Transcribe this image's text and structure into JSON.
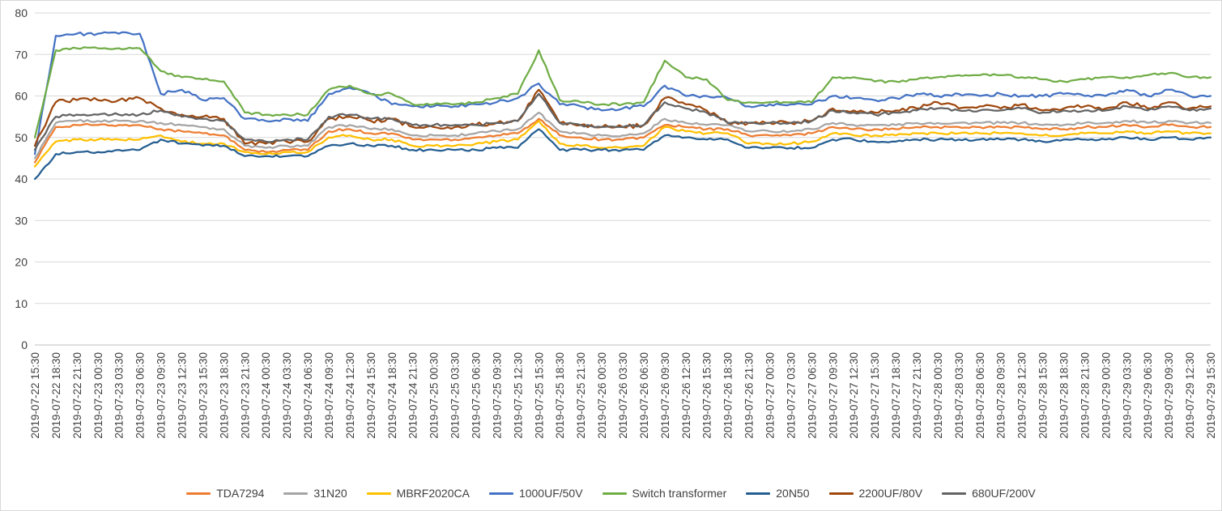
{
  "chart_data": {
    "type": "line",
    "title": "",
    "xlabel": "",
    "ylabel": "",
    "ylim": [
      0,
      80
    ],
    "ytick_step": 10,
    "grid": "horizontal",
    "legend_position": "bottom",
    "gridline_color": "#d9d9d9",
    "axis_line_color": "#bfbfbf",
    "axis_label_color": "#404040",
    "x": [
      "2019-07-22 15:30",
      "2019-07-22 18:30",
      "2019-07-22 21:30",
      "2019-07-23 00:30",
      "2019-07-23 03:30",
      "2019-07-23 06:30",
      "2019-07-23 09:30",
      "2019-07-23 12:30",
      "2019-07-23 15:30",
      "2019-07-23 18:30",
      "2019-07-23 21:30",
      "2019-07-24 00:30",
      "2019-07-24 03:30",
      "2019-07-24 06:30",
      "2019-07-24 09:30",
      "2019-07-24 12:30",
      "2019-07-24 15:30",
      "2019-07-24 18:30",
      "2019-07-24 21:30",
      "2019-07-25 00:30",
      "2019-07-25 03:30",
      "2019-07-25 06:30",
      "2019-07-25 09:30",
      "2019-07-25 12:30",
      "2019-07-25 15:30",
      "2019-07-25 18:30",
      "2019-07-25 21:30",
      "2019-07-26 00:30",
      "2019-07-26 03:30",
      "2019-07-26 06:30",
      "2019-07-26 09:30",
      "2019-07-26 12:30",
      "2019-07-26 15:30",
      "2019-07-26 18:30",
      "2019-07-26 21:30",
      "2019-07-27 00:30",
      "2019-07-27 03:30",
      "2019-07-27 06:30",
      "2019-07-27 09:30",
      "2019-07-27 12:30",
      "2019-07-27 15:30",
      "2019-07-27 18:30",
      "2019-07-27 21:30",
      "2019-07-28 00:30",
      "2019-07-28 03:30",
      "2019-07-28 06:30",
      "2019-07-28 09:30",
      "2019-07-28 12:30",
      "2019-07-28 15:30",
      "2019-07-28 18:30",
      "2019-07-28 21:30",
      "2019-07-29 00:30",
      "2019-07-29 03:30",
      "2019-07-29 06:30",
      "2019-07-29 09:30",
      "2019-07-29 12:30",
      "2019-07-29 15:30"
    ],
    "series": [
      {
        "name": "TDA7294",
        "color": "#ED7D31",
        "noise": 0.3,
        "values": [
          44,
          52.5,
          53,
          53,
          53,
          53,
          52,
          51.5,
          51,
          50.5,
          47,
          46.5,
          47,
          47,
          51.5,
          52,
          51,
          51,
          49.5,
          49.5,
          49.5,
          50,
          50.5,
          51,
          54.5,
          50.5,
          50,
          49.5,
          49.5,
          50,
          53,
          52.5,
          52,
          52,
          50.5,
          50.5,
          50.5,
          51,
          52.5,
          52,
          52,
          52,
          52.5,
          52.5,
          52.5,
          52.5,
          52.5,
          52.5,
          52,
          52,
          52.5,
          52.5,
          53,
          52.5,
          53,
          52.5,
          52.5
        ]
      },
      {
        "name": "31N20",
        "color": "#A5A5A5",
        "noise": 0.3,
        "values": [
          45,
          53.5,
          54,
          54,
          54,
          54,
          53.5,
          53,
          52.5,
          52,
          48,
          47.5,
          48,
          48,
          52.5,
          53,
          52,
          52,
          50.5,
          50.5,
          50.5,
          51,
          51.5,
          52,
          56,
          51.5,
          51,
          50.5,
          50.5,
          51,
          54.5,
          53.5,
          53,
          53,
          51.5,
          51.5,
          51.5,
          52,
          53.5,
          53,
          53,
          53,
          53.5,
          53.5,
          53.5,
          53.5,
          53.5,
          53.5,
          53,
          53,
          53.5,
          53.5,
          54,
          53.5,
          54,
          53.5,
          53.5
        ]
      },
      {
        "name": "MBRF2020CA",
        "color": "#FFC000",
        "noise": 0.3,
        "values": [
          43,
          49,
          49.5,
          49.5,
          49.5,
          49.5,
          50.5,
          49,
          48.5,
          48.5,
          46.5,
          46,
          46.5,
          46.5,
          50,
          50.5,
          49.5,
          49.5,
          48,
          48,
          48,
          48.5,
          49,
          49.5,
          54,
          48.5,
          48,
          47.5,
          47.5,
          48,
          52.5,
          51.5,
          51,
          51,
          48.5,
          48.5,
          48.5,
          49,
          51,
          50.5,
          50.5,
          50.5,
          51,
          51,
          51,
          51,
          51,
          51,
          50.5,
          50.5,
          51,
          51,
          51.5,
          51,
          51.5,
          51,
          51
        ]
      },
      {
        "name": "1000UF/50V",
        "color": "#4472C4",
        "noise": 0.4,
        "values": [
          46,
          74.5,
          75,
          75,
          75,
          75,
          60.5,
          61.5,
          59,
          59.5,
          54.5,
          54,
          54.5,
          54,
          60.5,
          62,
          60.5,
          58,
          57.5,
          57.5,
          57.5,
          58,
          58.5,
          59.5,
          63,
          58,
          57.5,
          56.5,
          57,
          57.5,
          62.5,
          60,
          60,
          59.5,
          57.5,
          58,
          58,
          58,
          60,
          59.5,
          59,
          59.5,
          60.5,
          60,
          60.5,
          60,
          60.5,
          60,
          60,
          60.5,
          60,
          60,
          61.5,
          60,
          61.5,
          60,
          60
        ]
      },
      {
        "name": "Switch transformer",
        "color": "#70AD47",
        "noise": 0.3,
        "values": [
          50,
          71,
          71.5,
          71.5,
          71.5,
          71.5,
          66,
          64.5,
          64,
          63.5,
          56,
          55.5,
          55.5,
          55.5,
          61.5,
          62.5,
          60.5,
          60.5,
          58,
          58,
          58,
          58.5,
          59.5,
          60.5,
          71,
          59,
          58.5,
          58,
          58,
          58.5,
          68.5,
          64.5,
          64,
          59,
          58.5,
          58.5,
          58.5,
          58.5,
          64.5,
          64.5,
          63.5,
          63.5,
          64,
          64.5,
          65,
          65,
          65,
          64.5,
          64,
          63.5,
          64,
          64.5,
          64.5,
          65,
          65.5,
          64.5,
          64.5
        ]
      },
      {
        "name": "20N50",
        "color": "#255E91",
        "noise": 0.3,
        "values": [
          40,
          46,
          46.5,
          46.5,
          47,
          47,
          49.5,
          48.5,
          48,
          48,
          45.5,
          45.5,
          45.5,
          45.5,
          48,
          48.5,
          48,
          48,
          47,
          47,
          47,
          47,
          47.5,
          47.5,
          52,
          47,
          47,
          47,
          47,
          47,
          50.5,
          50,
          49.5,
          49.5,
          47.5,
          47.5,
          47.5,
          47.5,
          49.5,
          49.5,
          49,
          49,
          49.5,
          49.5,
          49.5,
          49.5,
          49.5,
          49.5,
          49,
          49.5,
          49.5,
          49.5,
          50,
          49.5,
          50,
          49.5,
          50
        ]
      },
      {
        "name": "2200UF/80V",
        "color": "#9E480E",
        "noise": 0.55,
        "values": [
          48,
          58.5,
          59,
          59,
          59,
          59.5,
          57,
          55.5,
          55,
          54.5,
          48.5,
          48.5,
          49,
          49,
          54.5,
          55,
          54,
          54.5,
          52.5,
          52.5,
          52.5,
          53,
          53.5,
          54,
          61.5,
          53.5,
          53,
          52.5,
          52.5,
          53,
          59.5,
          58,
          56.5,
          53.5,
          53.5,
          53.5,
          53.5,
          54,
          57,
          56.5,
          56,
          56.5,
          57,
          58.5,
          57,
          57.5,
          57,
          58,
          56.5,
          57,
          57.5,
          57,
          58.5,
          57,
          58.5,
          57,
          57.5
        ]
      },
      {
        "name": "680UF/200V",
        "color": "#636363",
        "noise": 0.35,
        "values": [
          47,
          55,
          55.5,
          55.5,
          55.5,
          55.5,
          56.5,
          55,
          54.5,
          54,
          49.5,
          49,
          49.5,
          49.5,
          55,
          55.5,
          54.5,
          54.5,
          53,
          53,
          53,
          53,
          53.5,
          54,
          60.5,
          53.5,
          53,
          52.5,
          52.5,
          53,
          58.5,
          57,
          56,
          53.5,
          53.5,
          53.5,
          53.5,
          54,
          56.5,
          56,
          55.5,
          56,
          56.5,
          57,
          56.5,
          56.5,
          56.5,
          57,
          56,
          56.5,
          56.5,
          56.5,
          57.5,
          56.5,
          57.5,
          56.5,
          57
        ]
      }
    ]
  }
}
